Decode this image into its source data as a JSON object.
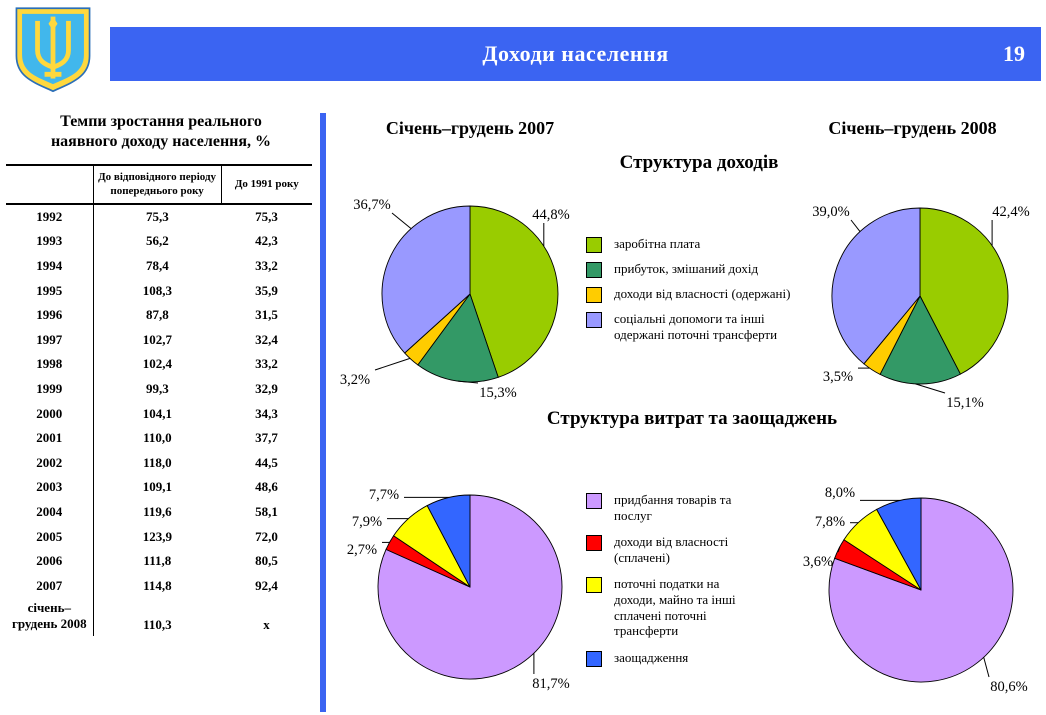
{
  "header": {
    "title": "Доходи населення",
    "page_number": "19"
  },
  "emblem": {
    "name": "coat-of-arms-of-ukraine",
    "shield_color": "#41B7EC",
    "trident_color": "#FFD83D"
  },
  "palette": {
    "header_blue": "#3B64F2",
    "divider_blue": "#3B64F2"
  },
  "table": {
    "title": "Темпи зростання реального наявного доходу населення, %",
    "columns": [
      "",
      "До відповідного періоду попереднього року",
      "До 1991 року"
    ],
    "rows": [
      {
        "year": "1992",
        "to_previous": "75,3",
        "to_1991": "75,3"
      },
      {
        "year": "1993",
        "to_previous": "56,2",
        "to_1991": "42,3"
      },
      {
        "year": "1994",
        "to_previous": "78,4",
        "to_1991": "33,2"
      },
      {
        "year": "1995",
        "to_previous": "108,3",
        "to_1991": "35,9"
      },
      {
        "year": "1996",
        "to_previous": "87,8",
        "to_1991": "31,5"
      },
      {
        "year": "1997",
        "to_previous": "102,7",
        "to_1991": "32,4"
      },
      {
        "year": "1998",
        "to_previous": "102,4",
        "to_1991": "33,2"
      },
      {
        "year": "1999",
        "to_previous": "99,3",
        "to_1991": "32,9"
      },
      {
        "year": "2000",
        "to_previous": "104,1",
        "to_1991": "34,3"
      },
      {
        "year": "2001",
        "to_previous": "110,0",
        "to_1991": "37,7"
      },
      {
        "year": "2002",
        "to_previous": "118,0",
        "to_1991": "44,5"
      },
      {
        "year": "2003",
        "to_previous": "109,1",
        "to_1991": "48,6"
      },
      {
        "year": "2004",
        "to_previous": "119,6",
        "to_1991": "58,1"
      },
      {
        "year": "2005",
        "to_previous": "123,9",
        "to_1991": "72,0"
      },
      {
        "year": "2006",
        "to_previous": "111,8",
        "to_1991": "80,5"
      },
      {
        "year": "2007",
        "to_previous": "114,8",
        "to_1991": "92,4"
      },
      {
        "year": "січень–грудень 2008",
        "to_previous": "110,3",
        "to_1991": "х"
      }
    ]
  },
  "charts": {
    "period_left": "Січень–грудень 2007",
    "period_right": "Січень–грудень 2008",
    "income_section_title": "Структура доходів",
    "expense_section_title": "Структура витрат та заощаджень"
  },
  "chart_data": [
    {
      "id": "income-2007",
      "type": "pie",
      "period": "Січень–грудень 2007",
      "section": "Структура доходів",
      "slices": [
        {
          "label": "заробітна плата",
          "value": 44.8,
          "display": "44,8%",
          "color": "#99CC00"
        },
        {
          "label": "прибуток, змішаний дохід",
          "value": 15.3,
          "display": "15,3%",
          "color": "#339966"
        },
        {
          "label": "доходи від власності (одержані)",
          "value": 3.2,
          "display": "3,2%",
          "color": "#FFCC00"
        },
        {
          "label": "соціальні допомоги та інші одержані поточні трансферти",
          "value": 36.7,
          "display": "36,7%",
          "color": "#9999FF"
        }
      ]
    },
    {
      "id": "income-2008",
      "type": "pie",
      "period": "Січень–грудень 2008",
      "section": "Структура доходів",
      "slices": [
        {
          "label": "заробітна плата",
          "value": 42.4,
          "display": "42,4%",
          "color": "#99CC00"
        },
        {
          "label": "прибуток, змішаний дохід",
          "value": 15.1,
          "display": "15,1%",
          "color": "#339966"
        },
        {
          "label": "доходи від власності (одержані)",
          "value": 3.5,
          "display": "3,5%",
          "color": "#FFCC00"
        },
        {
          "label": "соціальні допомоги та інші одержані поточні трансферти",
          "value": 39.0,
          "display": "39,0%",
          "color": "#9999FF"
        }
      ]
    },
    {
      "id": "expense-2007",
      "type": "pie",
      "period": "Січень–грудень 2007",
      "section": "Структура витрат та заощаджень",
      "slices": [
        {
          "label": "придбання товарів та послуг",
          "value": 81.7,
          "display": "81,7%",
          "color": "#CC99FF"
        },
        {
          "label": "доходи від власності (сплачені)",
          "value": 2.7,
          "display": "2,7%",
          "color": "#FF0000"
        },
        {
          "label": "поточні податки на доходи, майно та інші сплачені поточні трансферти",
          "value": 7.9,
          "display": "7,9%",
          "color": "#FFFF00"
        },
        {
          "label": "заощадження",
          "value": 7.7,
          "display": "7,7%",
          "color": "#3366FF"
        }
      ]
    },
    {
      "id": "expense-2008",
      "type": "pie",
      "period": "Січень–грудень 2008",
      "section": "Структура витрат та заощаджень",
      "slices": [
        {
          "label": "придбання товарів та послуг",
          "value": 80.6,
          "display": "80,6%",
          "color": "#CC99FF"
        },
        {
          "label": "доходи від власності (сплачені)",
          "value": 3.6,
          "display": "3,6%",
          "color": "#FF0000"
        },
        {
          "label": "поточні податки на доходи, майно та інші сплачені поточні трансферти",
          "value": 7.8,
          "display": "7,8%",
          "color": "#FFFF00"
        },
        {
          "label": "заощадження",
          "value": 8.0,
          "display": "8,0%",
          "color": "#3366FF"
        }
      ]
    }
  ]
}
